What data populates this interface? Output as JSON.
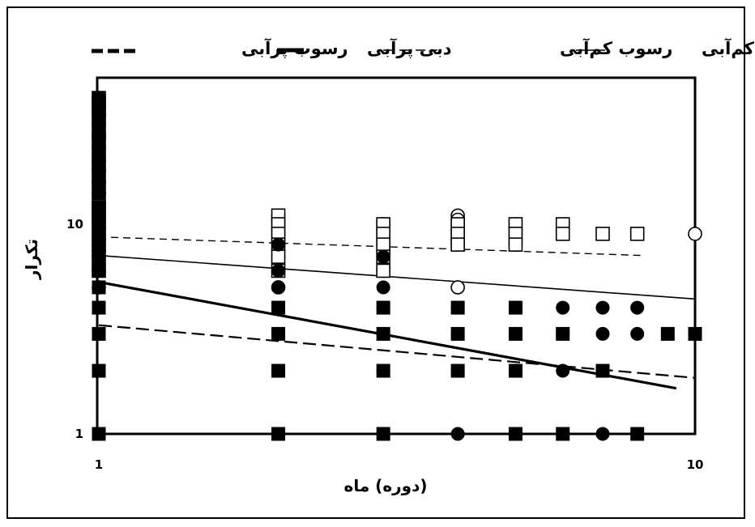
{
  "chart_data": {
    "type": "scatter",
    "xlabel": "(دوره) ماه",
    "ylabel": "تکرار",
    "xscale": "log",
    "yscale": "log",
    "xlim": [
      1,
      10
    ],
    "ylim": [
      1,
      40
    ],
    "x_ticks": [
      "1",
      "10"
    ],
    "y_ticks": [
      "1",
      "10"
    ],
    "grid": false,
    "legend_position": "top",
    "legend": [
      {
        "label": "دبی کم‌آبی",
        "style": "thin-solid"
      },
      {
        "label": "رسوب کم‌آبی",
        "style": "thin-dashed"
      },
      {
        "label": "دبی پرآبی",
        "style": "thick-solid"
      },
      {
        "label": "رسوب پرآبی",
        "style": "thick-dashed"
      }
    ],
    "series": [
      {
        "name": "دبی کم‌آبی",
        "marker": "open-circle",
        "points": [
          [
            1,
            40
          ],
          [
            1,
            36
          ],
          [
            1,
            30
          ],
          [
            1,
            26
          ],
          [
            1,
            23
          ],
          [
            1,
            20
          ],
          [
            1,
            18
          ],
          [
            1,
            16
          ],
          [
            1,
            14
          ],
          [
            1,
            12
          ],
          [
            1,
            11
          ],
          [
            1,
            10
          ],
          [
            1,
            9
          ],
          [
            1,
            8
          ],
          [
            1,
            7
          ],
          [
            1,
            6
          ],
          [
            1,
            5
          ],
          [
            2,
            11
          ],
          [
            2,
            10
          ],
          [
            2,
            9
          ],
          [
            2,
            8
          ],
          [
            2,
            7
          ],
          [
            2,
            6
          ],
          [
            2,
            5
          ],
          [
            3,
            10
          ],
          [
            3,
            9
          ],
          [
            3,
            8
          ],
          [
            3,
            7
          ],
          [
            3,
            6
          ],
          [
            4,
            11
          ],
          [
            4,
            10.5
          ],
          [
            4,
            10
          ],
          [
            4,
            9
          ],
          [
            4,
            8
          ],
          [
            4,
            5
          ],
          [
            5,
            10
          ],
          [
            5,
            9
          ],
          [
            5,
            8
          ],
          [
            6,
            9
          ],
          [
            8,
            9
          ],
          [
            10,
            9
          ]
        ]
      },
      {
        "name": "رسوب کم‌آبی",
        "marker": "open-square",
        "points": [
          [
            1,
            40
          ],
          [
            1,
            38
          ],
          [
            1,
            35
          ],
          [
            1,
            32
          ],
          [
            1,
            28
          ],
          [
            1,
            25
          ],
          [
            1,
            22
          ],
          [
            1,
            19
          ],
          [
            1,
            17
          ],
          [
            1,
            15
          ],
          [
            1,
            13
          ],
          [
            1,
            12
          ],
          [
            1,
            11
          ],
          [
            1,
            10
          ],
          [
            1,
            9
          ],
          [
            1,
            8
          ],
          [
            1,
            7
          ],
          [
            1,
            6
          ],
          [
            2,
            11
          ],
          [
            2,
            10
          ],
          [
            2,
            9
          ],
          [
            2,
            8
          ],
          [
            2,
            7
          ],
          [
            2,
            6
          ],
          [
            3,
            10
          ],
          [
            3,
            9
          ],
          [
            3,
            8
          ],
          [
            3,
            7
          ],
          [
            3,
            6
          ],
          [
            4,
            10
          ],
          [
            4,
            9
          ],
          [
            4,
            8
          ],
          [
            5,
            10
          ],
          [
            5,
            9
          ],
          [
            5,
            8
          ],
          [
            6,
            10
          ],
          [
            6,
            9
          ],
          [
            7,
            9
          ],
          [
            8,
            9
          ]
        ]
      },
      {
        "name": "دبی پرآبی",
        "marker": "filled-circle",
        "points": [
          [
            1,
            40
          ],
          [
            1,
            30
          ],
          [
            1,
            20
          ],
          [
            1,
            10
          ],
          [
            1,
            8
          ],
          [
            1,
            7
          ],
          [
            1,
            6
          ],
          [
            1,
            5
          ],
          [
            1,
            4
          ],
          [
            1,
            3
          ],
          [
            1,
            2
          ],
          [
            1,
            1
          ],
          [
            2,
            8
          ],
          [
            2,
            6
          ],
          [
            2,
            5
          ],
          [
            2,
            4
          ],
          [
            2,
            3
          ],
          [
            2,
            2
          ],
          [
            2,
            1
          ],
          [
            3,
            7
          ],
          [
            3,
            5
          ],
          [
            3,
            4
          ],
          [
            3,
            3
          ],
          [
            3,
            2
          ],
          [
            3,
            1
          ],
          [
            4,
            4
          ],
          [
            4,
            3
          ],
          [
            4,
            2
          ],
          [
            4,
            1
          ],
          [
            5,
            4
          ],
          [
            5,
            3
          ],
          [
            5,
            2
          ],
          [
            5,
            1
          ],
          [
            6,
            4
          ],
          [
            6,
            3
          ],
          [
            6,
            2
          ],
          [
            6,
            1
          ],
          [
            7,
            4
          ],
          [
            7,
            3
          ],
          [
            7,
            2
          ],
          [
            7,
            1
          ],
          [
            8,
            4
          ],
          [
            8,
            3
          ],
          [
            8,
            1
          ]
        ]
      },
      {
        "name": "رسوب پرآبی",
        "marker": "filled-square",
        "points": [
          [
            1,
            40
          ],
          [
            1,
            36
          ],
          [
            1,
            33
          ],
          [
            1,
            30
          ],
          [
            1,
            27
          ],
          [
            1,
            24
          ],
          [
            1,
            21
          ],
          [
            1,
            18
          ],
          [
            1,
            16
          ],
          [
            1,
            14
          ],
          [
            1,
            12
          ],
          [
            1,
            11
          ],
          [
            1,
            10
          ],
          [
            1,
            9
          ],
          [
            1,
            8
          ],
          [
            1,
            7
          ],
          [
            1,
            6
          ],
          [
            1,
            5
          ],
          [
            1,
            4
          ],
          [
            1,
            3
          ],
          [
            1,
            2
          ],
          [
            1,
            1
          ],
          [
            2,
            4
          ],
          [
            2,
            3
          ],
          [
            2,
            2
          ],
          [
            2,
            1
          ],
          [
            3,
            4
          ],
          [
            3,
            3
          ],
          [
            3,
            2
          ],
          [
            3,
            1
          ],
          [
            4,
            4
          ],
          [
            4,
            3
          ],
          [
            4,
            2
          ],
          [
            5,
            4
          ],
          [
            5,
            3
          ],
          [
            5,
            2
          ],
          [
            5,
            1
          ],
          [
            6,
            3
          ],
          [
            6,
            1
          ],
          [
            7,
            2
          ],
          [
            8,
            1
          ],
          [
            9,
            3
          ],
          [
            10,
            3
          ]
        ]
      }
    ],
    "trendlines": [
      {
        "name": "رسوب کم‌آبی",
        "style": "thin-dashed",
        "from": [
          1,
          8.7
        ],
        "to": [
          8.1,
          7.1
        ]
      },
      {
        "name": "دبی کم‌آبی",
        "style": "thin-solid",
        "from": [
          1,
          7.1
        ],
        "to": [
          10,
          4.4
        ]
      },
      {
        "name": "دبی پرآبی",
        "style": "thick-solid",
        "from": [
          1,
          5.3
        ],
        "to": [
          9.3,
          1.65
        ]
      },
      {
        "name": "رسوب پرآبی",
        "style": "thick-dashed",
        "from": [
          1,
          3.3
        ],
        "to": [
          10,
          1.85
        ]
      }
    ]
  }
}
